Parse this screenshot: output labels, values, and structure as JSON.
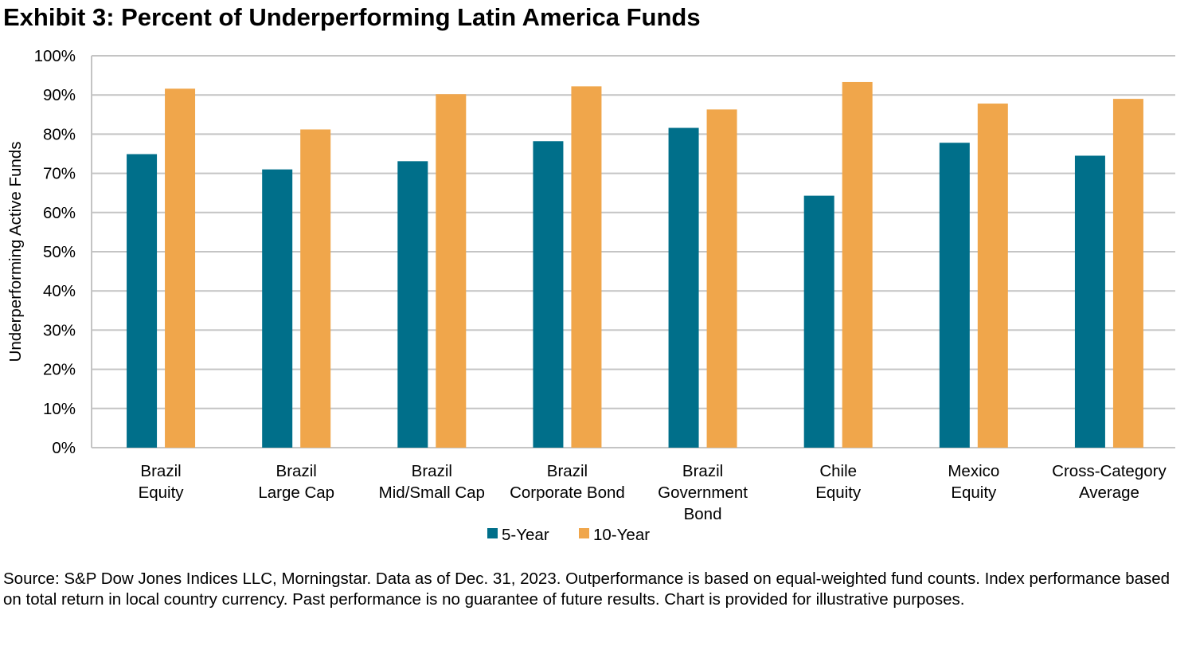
{
  "chart_data": {
    "type": "bar",
    "title": "Exhibit 3: Percent of Underperforming Latin America Funds",
    "xlabel": "",
    "ylabel": "Underperforming Active Funds",
    "ylim": [
      0,
      100
    ],
    "yticks": [
      "0%",
      "10%",
      "20%",
      "30%",
      "40%",
      "50%",
      "60%",
      "70%",
      "80%",
      "90%",
      "100%"
    ],
    "grid": true,
    "legend_position": "bottom",
    "categories": [
      [
        "Brazil",
        "Equity"
      ],
      [
        "Brazil",
        "Large Cap"
      ],
      [
        "Brazil",
        "Mid/Small Cap"
      ],
      [
        "Brazil",
        "Corporate Bond"
      ],
      [
        "Brazil",
        "Government",
        "Bond"
      ],
      [
        "Chile",
        "Equity"
      ],
      [
        "Mexico",
        "Equity"
      ],
      [
        "Cross-Category",
        "Average"
      ]
    ],
    "series": [
      {
        "name": "5-Year",
        "color": "#006F8A",
        "values": [
          74.9,
          71.0,
          73.1,
          78.2,
          81.6,
          64.3,
          77.8,
          74.5
        ]
      },
      {
        "name": "10-Year",
        "color": "#F0A64B",
        "values": [
          91.6,
          81.2,
          90.2,
          92.2,
          86.3,
          93.3,
          87.8,
          89.0
        ]
      }
    ]
  },
  "source": "Source: S&P Dow Jones Indices LLC, Morningstar. Data as of Dec. 31, 2023. Outperformance is based on equal-weighted fund counts. Index performance based on total return in local country currency. Past performance is no guarantee of future results. Chart is provided for illustrative purposes."
}
